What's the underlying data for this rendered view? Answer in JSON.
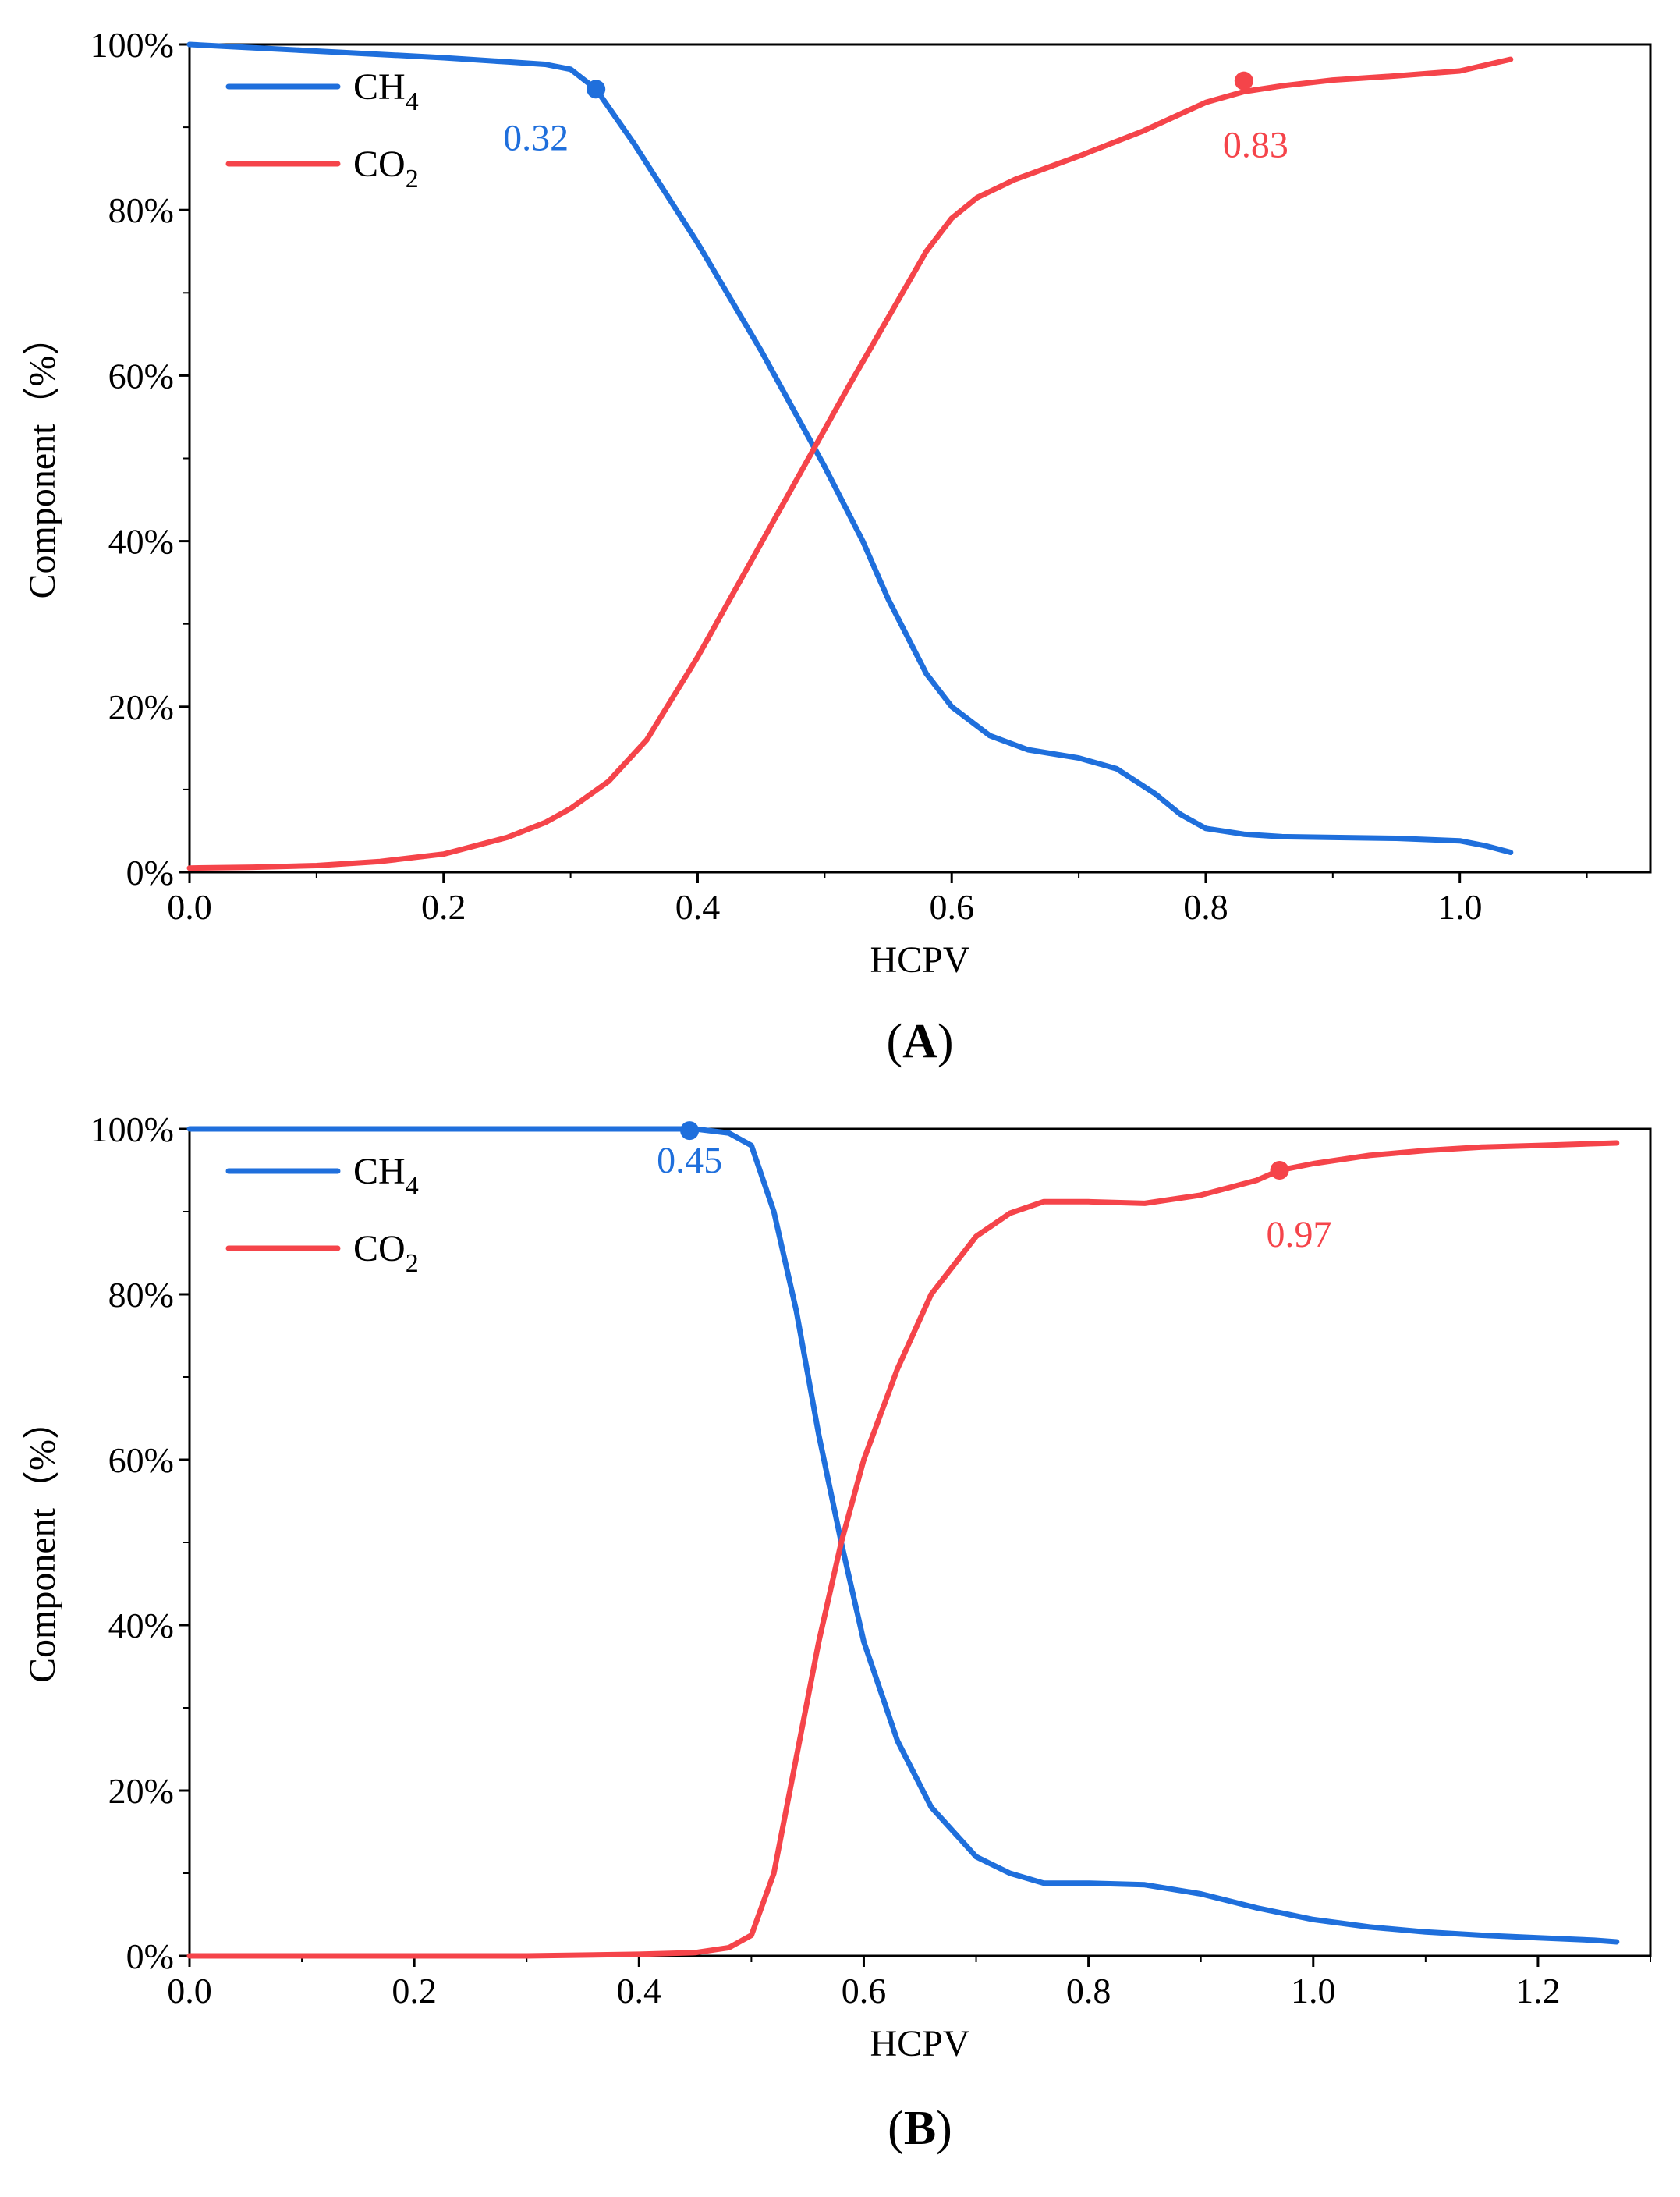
{
  "chart_data": [
    {
      "type": "line",
      "panel_label": "A",
      "xlabel": "HCPV",
      "ylabel": "Component（%）",
      "xlim": [
        0,
        1.15
      ],
      "ylim": [
        0,
        100
      ],
      "xticks": [
        0.0,
        0.2,
        0.4,
        0.6,
        0.8,
        1.0
      ],
      "xtick_labels": [
        "0.0",
        "0.2",
        "0.4",
        "0.6",
        "0.8",
        "1.0"
      ],
      "yticks": [
        0,
        20,
        40,
        60,
        80,
        100
      ],
      "ytick_labels": [
        "0%",
        "20%",
        "40%",
        "60%",
        "80%",
        "100%"
      ],
      "legend_position": "top-left",
      "series": [
        {
          "name": "CH4",
          "label_main": "CH",
          "label_sub": "4",
          "color": "#1f6fdc",
          "x": [
            0.0,
            0.05,
            0.1,
            0.15,
            0.2,
            0.25,
            0.28,
            0.3,
            0.32,
            0.35,
            0.4,
            0.45,
            0.5,
            0.53,
            0.55,
            0.58,
            0.6,
            0.63,
            0.66,
            0.7,
            0.73,
            0.76,
            0.78,
            0.8,
            0.83,
            0.86,
            0.9,
            0.95,
            1.0,
            1.02,
            1.04
          ],
          "y": [
            100,
            99.6,
            99.2,
            98.8,
            98.4,
            97.9,
            97.6,
            97.0,
            94.6,
            88,
            76,
            63,
            49,
            40,
            33,
            24,
            20,
            16.5,
            14.8,
            13.8,
            12.5,
            9.5,
            7.0,
            5.3,
            4.6,
            4.3,
            4.2,
            4.1,
            3.8,
            3.2,
            2.4
          ]
        },
        {
          "name": "CO2",
          "label_main": "CO",
          "label_sub": "2",
          "color": "#f5444a",
          "x": [
            0.0,
            0.05,
            0.1,
            0.15,
            0.2,
            0.25,
            0.28,
            0.3,
            0.33,
            0.36,
            0.4,
            0.44,
            0.48,
            0.52,
            0.55,
            0.58,
            0.6,
            0.62,
            0.65,
            0.7,
            0.75,
            0.8,
            0.83,
            0.86,
            0.9,
            0.95,
            1.0,
            1.02,
            1.04
          ],
          "y": [
            0.5,
            0.6,
            0.8,
            1.3,
            2.2,
            4.2,
            6.0,
            7.7,
            11,
            16,
            26,
            37,
            48,
            59,
            67,
            75,
            79,
            81.5,
            83.7,
            86.5,
            89.5,
            93,
            94.3,
            95.0,
            95.7,
            96.2,
            96.8,
            97.5,
            98.2
          ]
        }
      ],
      "annotations": [
        {
          "text": "0.32",
          "x": 0.32,
          "y": 94.6,
          "series": "CH4",
          "color": "#1f6fdc"
        },
        {
          "text": "0.83",
          "x": 0.83,
          "y": 95.6,
          "series": "CO2",
          "color": "#f5444a"
        }
      ]
    },
    {
      "type": "line",
      "panel_label": "B",
      "xlabel": "HCPV",
      "ylabel": "Component（%）",
      "xlim": [
        0,
        1.3
      ],
      "ylim": [
        0,
        100
      ],
      "xticks": [
        0.0,
        0.2,
        0.4,
        0.6,
        0.8,
        1.0,
        1.2
      ],
      "xtick_labels": [
        "0.0",
        "0.2",
        "0.4",
        "0.6",
        "0.8",
        "1.0",
        "1.2"
      ],
      "yticks": [
        0,
        20,
        40,
        60,
        80,
        100
      ],
      "ytick_labels": [
        "0%",
        "20%",
        "40%",
        "60%",
        "80%",
        "100%"
      ],
      "legend_position": "top-left",
      "series": [
        {
          "name": "CH4",
          "label_main": "CH",
          "label_sub": "4",
          "color": "#1f6fdc",
          "x": [
            0.0,
            0.1,
            0.2,
            0.3,
            0.4,
            0.45,
            0.48,
            0.5,
            0.52,
            0.54,
            0.56,
            0.58,
            0.6,
            0.63,
            0.66,
            0.7,
            0.73,
            0.76,
            0.8,
            0.85,
            0.9,
            0.95,
            1.0,
            1.05,
            1.1,
            1.15,
            1.2,
            1.25,
            1.27
          ],
          "y": [
            100,
            100,
            100,
            100,
            100,
            100,
            99.5,
            98,
            90,
            78,
            63,
            50,
            38,
            26,
            18,
            12,
            10,
            8.8,
            8.8,
            8.6,
            7.5,
            5.8,
            4.4,
            3.5,
            2.9,
            2.5,
            2.2,
            1.9,
            1.7
          ]
        },
        {
          "name": "CO2",
          "label_main": "CO",
          "label_sub": "2",
          "color": "#f5444a",
          "x": [
            0.0,
            0.1,
            0.2,
            0.3,
            0.4,
            0.45,
            0.48,
            0.5,
            0.52,
            0.54,
            0.56,
            0.58,
            0.6,
            0.63,
            0.66,
            0.7,
            0.73,
            0.76,
            0.8,
            0.85,
            0.9,
            0.95,
            0.97,
            1.0,
            1.05,
            1.1,
            1.15,
            1.2,
            1.27
          ],
          "y": [
            0,
            0,
            0,
            0,
            0.2,
            0.4,
            1.0,
            2.5,
            10,
            24,
            38,
            50,
            60,
            71,
            80,
            87,
            89.8,
            91.2,
            91.2,
            91.0,
            92.0,
            93.8,
            95.0,
            95.8,
            96.8,
            97.4,
            97.8,
            98.0,
            98.3
          ]
        }
      ],
      "annotations": [
        {
          "text": "0.45",
          "x": 0.445,
          "y": 99.8,
          "series": "CH4",
          "color": "#1f6fdc"
        },
        {
          "text": "0.97",
          "x": 0.97,
          "y": 95.0,
          "series": "CO2",
          "color": "#f5444a"
        }
      ]
    }
  ]
}
